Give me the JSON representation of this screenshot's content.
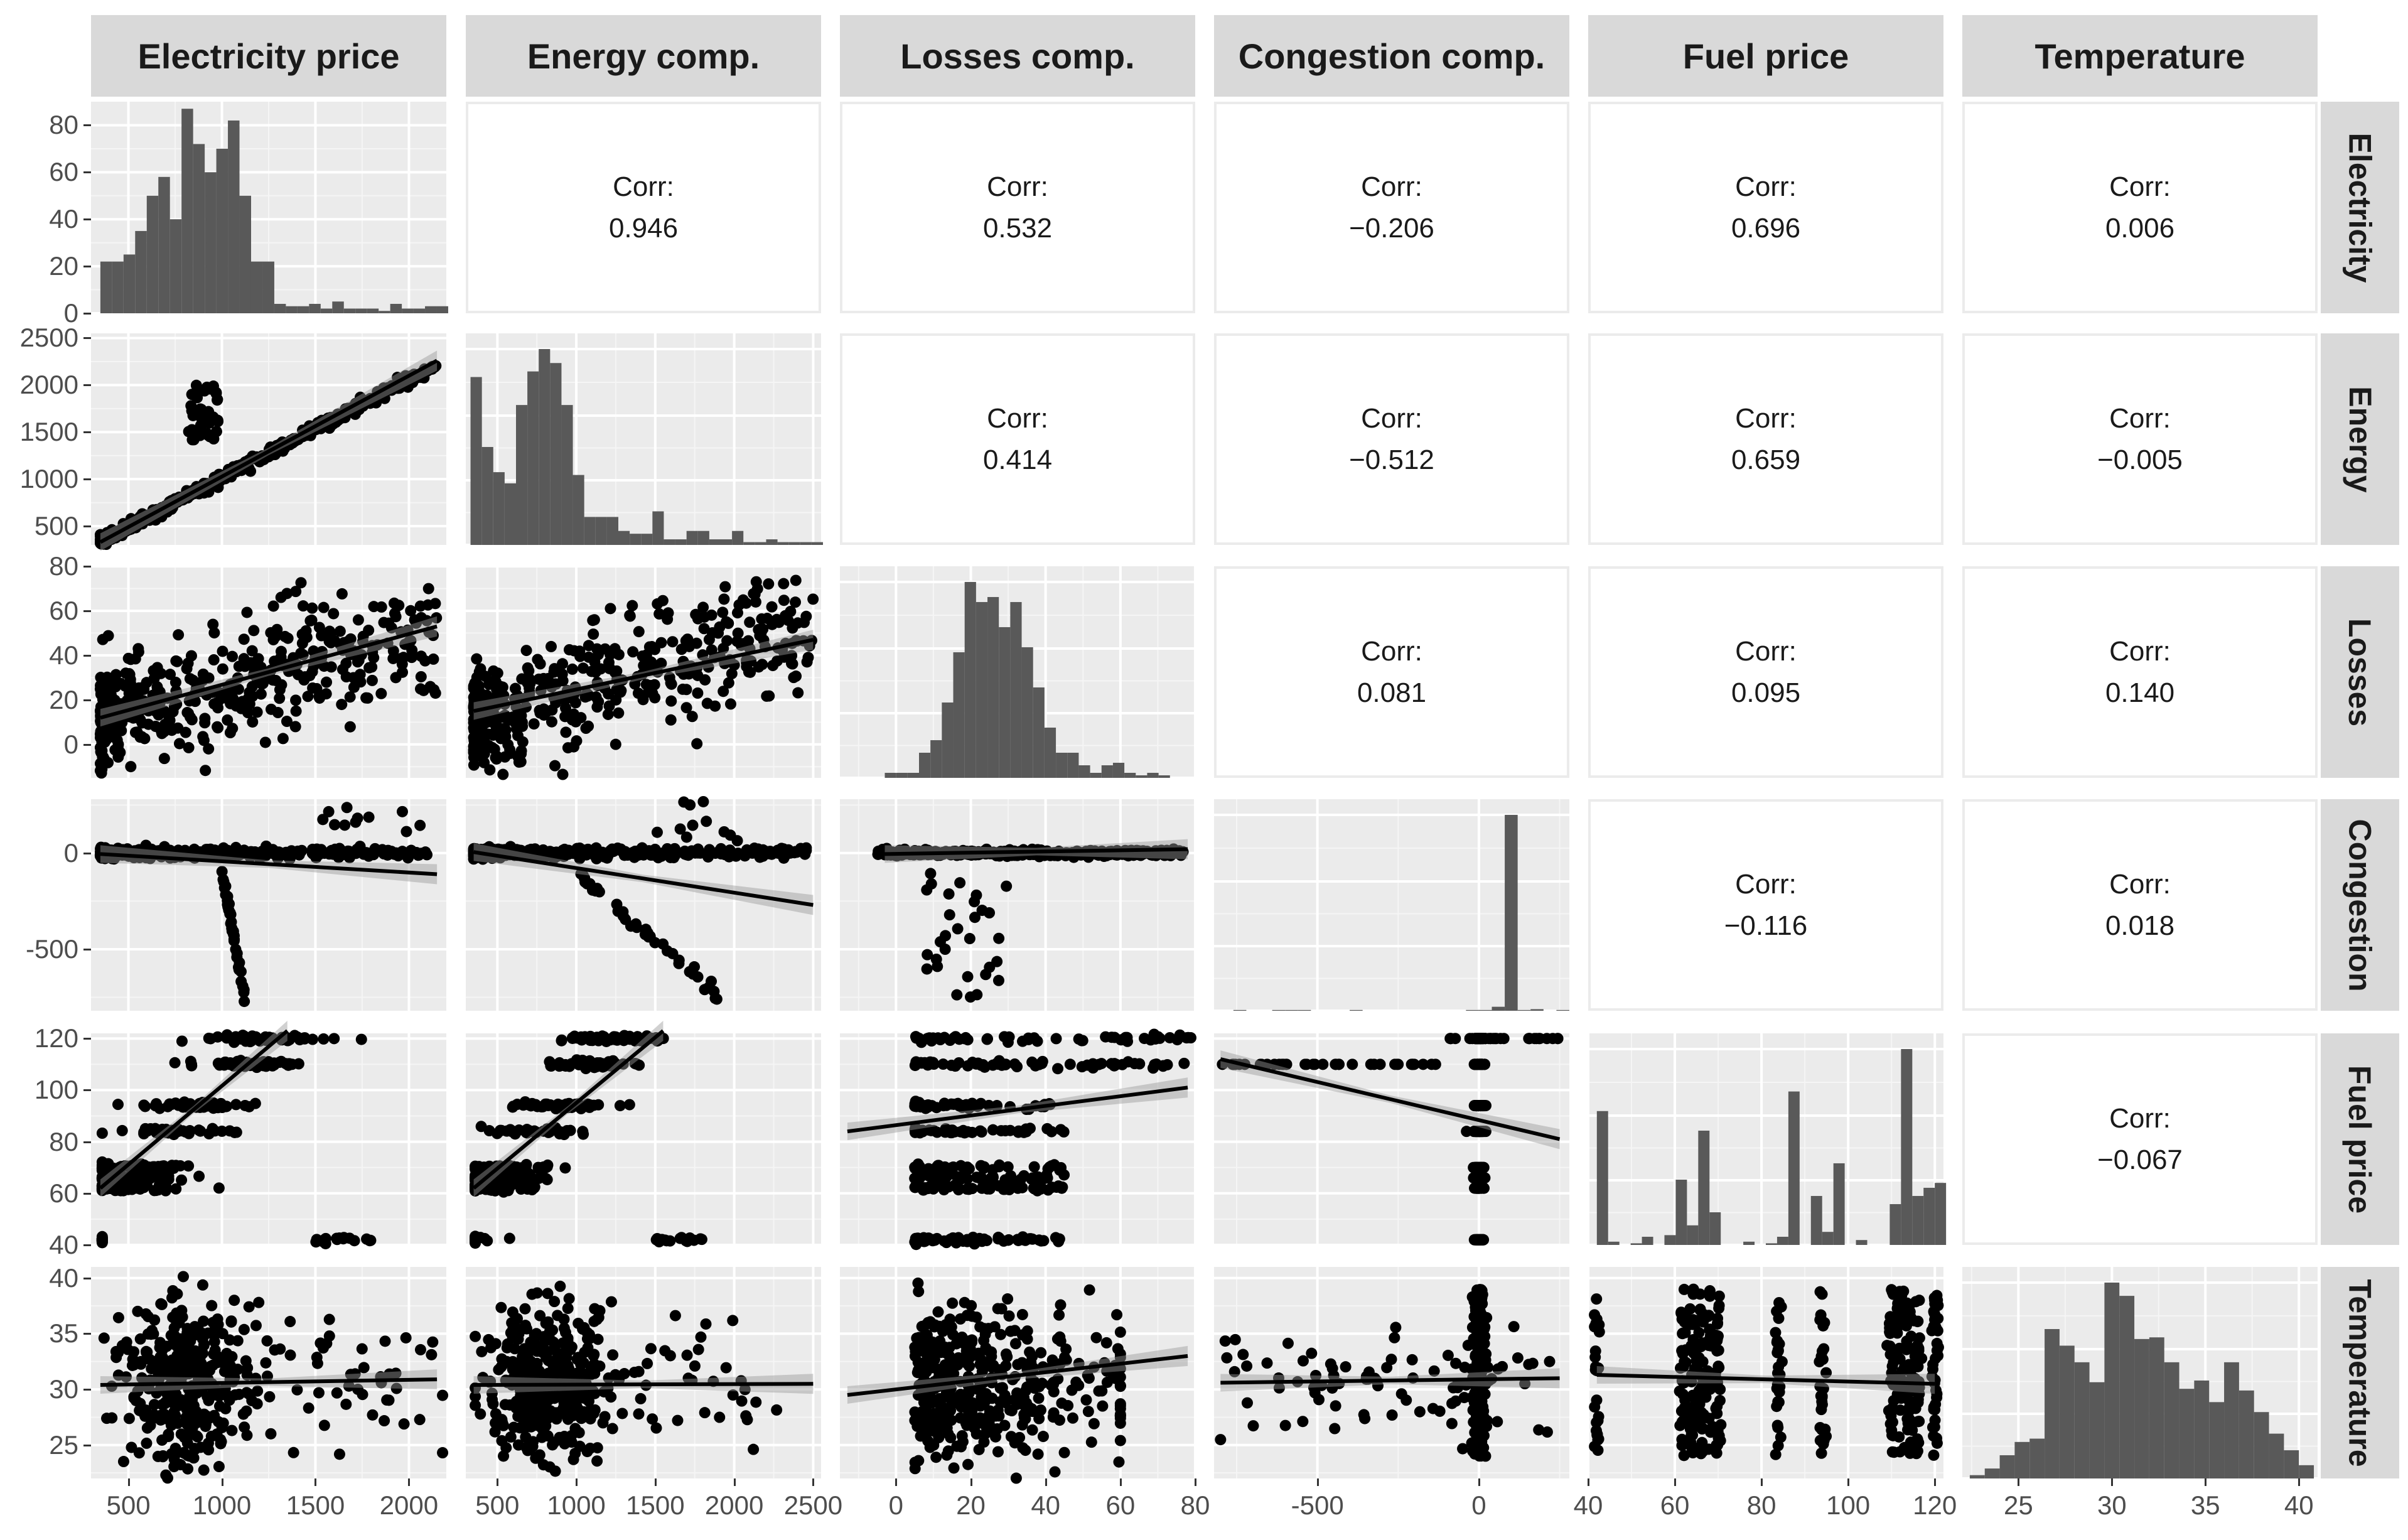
{
  "variables": [
    {
      "name": "Electricity price",
      "row_label": "Electricity",
      "lim": [
        300,
        2200
      ],
      "ticks": [
        500,
        1000,
        1500,
        2000
      ]
    },
    {
      "name": "Energy comp.",
      "row_label": "Energy",
      "lim": [
        300,
        2550
      ],
      "ticks": [
        500,
        1000,
        1500,
        2000,
        2500
      ]
    },
    {
      "name": "Losses comp.",
      "row_label": "Losses",
      "lim": [
        -15,
        80
      ],
      "ticks": [
        0,
        20,
        40,
        60,
        80
      ]
    },
    {
      "name": "Congestion comp.",
      "row_label": "Congestion",
      "lim": [
        -820,
        280
      ],
      "ticks": [
        -500,
        0
      ]
    },
    {
      "name": "Fuel price",
      "row_label": "Fuel price",
      "lim": [
        40,
        122
      ],
      "ticks": [
        40,
        60,
        80,
        100,
        120
      ]
    },
    {
      "name": "Temperature",
      "row_label": "Temperature",
      "lim": [
        22,
        41
      ],
      "ticks": [
        25,
        30,
        35,
        40
      ]
    }
  ],
  "diag_y_ticks": {
    "row0": {
      "lim": [
        0,
        90
      ],
      "ticks": [
        0,
        20,
        40,
        60,
        80
      ]
    }
  },
  "correlations": [
    {
      "row": 0,
      "col": 1,
      "label": "Corr:",
      "value": "0.946"
    },
    {
      "row": 0,
      "col": 2,
      "label": "Corr:",
      "value": "0.532"
    },
    {
      "row": 0,
      "col": 3,
      "label": "Corr:",
      "value": "−0.206"
    },
    {
      "row": 0,
      "col": 4,
      "label": "Corr:",
      "value": "0.696"
    },
    {
      "row": 0,
      "col": 5,
      "label": "Corr:",
      "value": "0.006"
    },
    {
      "row": 1,
      "col": 2,
      "label": "Corr:",
      "value": "0.414"
    },
    {
      "row": 1,
      "col": 3,
      "label": "Corr:",
      "value": "−0.512"
    },
    {
      "row": 1,
      "col": 4,
      "label": "Corr:",
      "value": "0.659"
    },
    {
      "row": 1,
      "col": 5,
      "label": "Corr:",
      "value": "−0.005"
    },
    {
      "row": 2,
      "col": 3,
      "label": "Corr:",
      "value": "0.081"
    },
    {
      "row": 2,
      "col": 4,
      "label": "Corr:",
      "value": "0.095"
    },
    {
      "row": 2,
      "col": 5,
      "label": "Corr:",
      "value": "0.140"
    },
    {
      "row": 3,
      "col": 4,
      "label": "Corr:",
      "value": "−0.116"
    },
    {
      "row": 3,
      "col": 5,
      "label": "Corr:",
      "value": "0.018"
    },
    {
      "row": 4,
      "col": 5,
      "label": "Corr:",
      "value": "−0.067"
    }
  ],
  "chart_data": {
    "type": "scatter",
    "title": "",
    "description_kind": "pairs plot",
    "histograms": [
      {
        "var": "Electricity price",
        "bin_start": 350,
        "bin_width": 62,
        "counts": [
          22,
          22,
          25,
          35,
          50,
          58,
          40,
          87,
          72,
          60,
          70,
          82,
          50,
          22,
          22,
          4,
          3,
          3,
          4,
          2,
          5,
          2,
          2,
          2,
          1,
          4,
          2,
          2,
          3,
          3,
          4,
          2,
          1,
          1
        ]
      },
      {
        "var": "Energy comp.",
        "bin_start": 330,
        "bin_width": 72,
        "counts": [
          60,
          35,
          26,
          22,
          50,
          62,
          70,
          65,
          50,
          25,
          10,
          10,
          10,
          5,
          4,
          4,
          12,
          2,
          2,
          5,
          5,
          2,
          2,
          5,
          1,
          1,
          2,
          1,
          1,
          1,
          1
        ]
      },
      {
        "var": "Losses comp.",
        "bin_start": -3,
        "bin_width": 3.05,
        "counts": [
          2,
          2,
          2,
          10,
          15,
          30,
          50,
          78,
          70,
          72,
          60,
          70,
          52,
          36,
          20,
          10,
          10,
          5,
          2,
          5,
          6,
          2,
          1,
          2,
          1
        ]
      },
      {
        "var": "Congestion comp.",
        "bin_start": -800,
        "bin_width": 40,
        "counts": [
          0,
          1,
          0,
          0,
          1,
          1,
          1,
          0,
          0,
          0,
          1,
          0,
          0,
          0,
          0,
          0,
          0,
          0,
          0,
          1,
          1,
          5,
          245,
          1,
          2,
          0,
          1,
          0
        ]
      },
      {
        "var": "Fuel price",
        "bin_start": 42,
        "bin_width": 2.6,
        "counts": [
          82,
          2,
          0,
          1,
          5,
          0,
          6,
          40,
          12,
          70,
          20,
          0,
          0,
          2,
          0,
          1,
          5,
          94,
          0,
          30,
          8,
          50,
          0,
          3,
          0,
          0,
          25,
          120,
          30,
          35,
          38
        ]
      },
      {
        "var": "Temperature",
        "bin_start": 22.4,
        "bin_width": 0.8,
        "counts": [
          2,
          6,
          14,
          22,
          24,
          90,
          80,
          70,
          58,
          118,
          110,
          84,
          85,
          70,
          54,
          59,
          46,
          70,
          53,
          40,
          27,
          17,
          8
        ]
      }
    ],
    "pairs": [
      {
        "x": "Electricity price",
        "y": "Energy comp.",
        "pattern": "linear",
        "trend": [
          [
            350,
            330
          ],
          [
            2150,
            2260
          ]
        ]
      },
      {
        "x": "Electricity price",
        "y": "Losses comp.",
        "pattern": "scatter",
        "trend": [
          [
            350,
            12
          ],
          [
            2150,
            53
          ]
        ]
      },
      {
        "x": "Electricity price",
        "y": "Congestion comp.",
        "pattern": "branch",
        "trend": [
          [
            350,
            -5
          ],
          [
            2150,
            -110
          ]
        ]
      },
      {
        "x": "Electricity price",
        "y": "Fuel price",
        "pattern": "levels",
        "trend": [
          [
            350,
            62
          ],
          [
            1350,
            123
          ]
        ]
      },
      {
        "x": "Electricity price",
        "y": "Temperature",
        "pattern": "cloud",
        "trend": [
          [
            350,
            30.4
          ],
          [
            2150,
            30.9
          ]
        ]
      },
      {
        "x": "Energy comp.",
        "y": "Losses comp.",
        "pattern": "scatter",
        "trend": [
          [
            350,
            15
          ],
          [
            2500,
            47
          ]
        ]
      },
      {
        "x": "Energy comp.",
        "y": "Congestion comp.",
        "pattern": "branch2",
        "trend": [
          [
            350,
            5
          ],
          [
            2500,
            -270
          ]
        ]
      },
      {
        "x": "Energy comp.",
        "y": "Fuel price",
        "pattern": "levels",
        "trend": [
          [
            350,
            62
          ],
          [
            1550,
            123
          ]
        ]
      },
      {
        "x": "Energy comp.",
        "y": "Temperature",
        "pattern": "cloud",
        "trend": [
          [
            350,
            30.4
          ],
          [
            2500,
            30.5
          ]
        ]
      },
      {
        "x": "Losses comp.",
        "y": "Congestion comp.",
        "pattern": "flat",
        "trend": [
          [
            -3,
            -5
          ],
          [
            78,
            20
          ]
        ]
      },
      {
        "x": "Losses comp.",
        "y": "Fuel price",
        "pattern": "levels2",
        "trend": [
          [
            -13,
            84
          ],
          [
            78,
            101
          ]
        ]
      },
      {
        "x": "Losses comp.",
        "y": "Temperature",
        "pattern": "cloud",
        "trend": [
          [
            -13,
            29.5
          ],
          [
            78,
            33
          ]
        ]
      },
      {
        "x": "Congestion comp.",
        "y": "Fuel price",
        "pattern": "vertical",
        "trend": [
          [
            -800,
            112
          ],
          [
            250,
            81
          ]
        ]
      },
      {
        "x": "Congestion comp.",
        "y": "Temperature",
        "pattern": "vertical",
        "trend": [
          [
            -800,
            30.6
          ],
          [
            250,
            31
          ]
        ]
      },
      {
        "x": "Fuel price",
        "y": "Temperature",
        "pattern": "columns",
        "trend": [
          [
            42,
            31.3
          ],
          [
            120,
            30.5
          ]
        ]
      }
    ],
    "grid": true
  }
}
